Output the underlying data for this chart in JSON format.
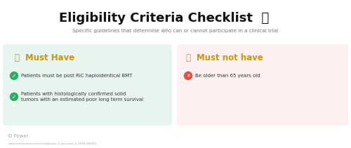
{
  "title": "Eligibility Criteria Checklist ",
  "title_emoji": "📋",
  "subtitle": "Specific guidelines that determine who can or cannot participate in a clinical trial",
  "left_box_color": "#e8f5ee",
  "right_box_color": "#fdf0f0",
  "left_header": "Must Have",
  "right_header": "Must not have",
  "left_header_color": "#c8960c",
  "right_header_color": "#c8960c",
  "left_items": [
    "Patients must be post RIC haploidentical BMT",
    "Patients with histologically confirmed solid\ntumors with an estimated poor long term survival"
  ],
  "right_items": [
    "Be older than 65 years old"
  ],
  "green_circle_color": "#27ae60",
  "red_circle_color": "#e74c3c",
  "item_text_color": "#333333",
  "title_color": "#111111",
  "subtitle_color": "#777777",
  "footer_color": "#aaaaaa",
  "footer_text": "Power",
  "url_text": "www.withpower.com/trial/phase-2-sarcoma-4-2018-68065",
  "bg_color": "#ffffff"
}
